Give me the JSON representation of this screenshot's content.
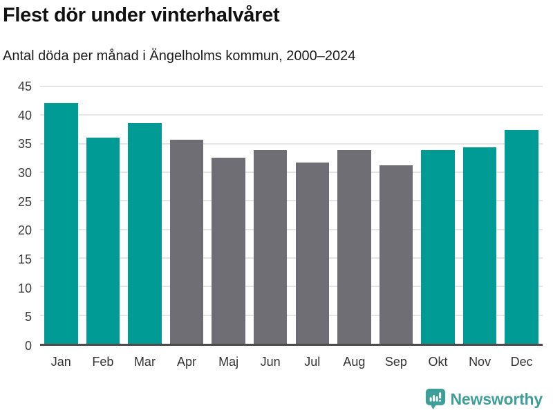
{
  "header": {
    "title": "Flest dör under vinterhalvåret",
    "subtitle": "Antal döda per månad i Ängelholms kommun, 2000–2024"
  },
  "chart_data": {
    "type": "bar",
    "title": "Flest dör under vinterhalvåret",
    "subtitle": "Antal döda per månad i Ängelholms kommun, 2000–2024",
    "categories": [
      "Jan",
      "Feb",
      "Mar",
      "Apr",
      "Maj",
      "Jun",
      "Jul",
      "Aug",
      "Sep",
      "Okt",
      "Nov",
      "Dec"
    ],
    "values": [
      42.1,
      36.1,
      38.6,
      35.7,
      32.5,
      33.9,
      31.7,
      33.9,
      31.2,
      33.9,
      34.4,
      37.4
    ],
    "bar_color_keys": [
      "teal",
      "teal",
      "teal",
      "gray",
      "gray",
      "gray",
      "gray",
      "gray",
      "gray",
      "teal",
      "teal",
      "teal"
    ],
    "colors": {
      "teal": "#009b94",
      "gray": "#6e6e74"
    },
    "xlabel": "",
    "ylabel": "",
    "ylim": [
      0,
      45
    ],
    "yticks": [
      0,
      5,
      10,
      15,
      20,
      25,
      30,
      35,
      40,
      45
    ],
    "grid": "horizontal",
    "legend": "none"
  },
  "footer": {
    "brand": "Newsworthy",
    "brand_color": "#3f9f98",
    "logo_icon": "newsworthy-speech-bubble-bar-chart-icon",
    "logo_bg_color": "#3f9f98"
  }
}
